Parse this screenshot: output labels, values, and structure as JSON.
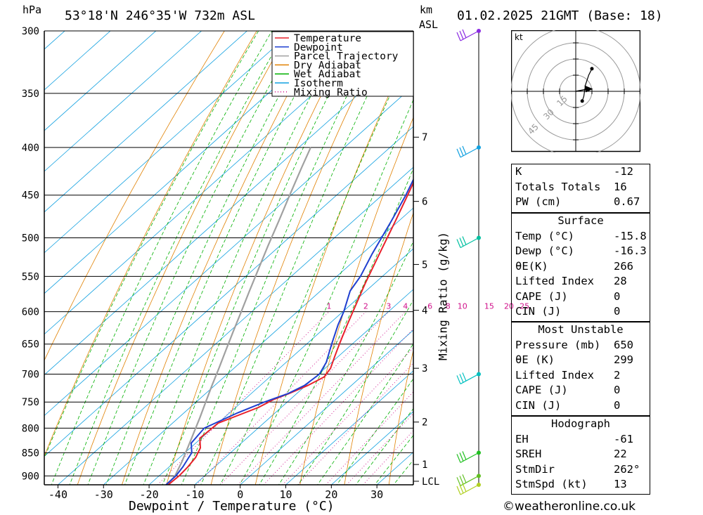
{
  "header": {
    "location": "53°18'N  246°35'W  732m  ASL",
    "datetime": "01.02.2025  21GMT  (Base: 18)",
    "pressure_unit": "hPa",
    "height_unit": "km",
    "height_ref": "ASL"
  },
  "chart_data": {
    "type": "line",
    "xlabel": "Dewpoint / Temperature (°C)",
    "ylabel": "hPa",
    "secondary_ylabel": "Mixing Ratio (g/kg)",
    "xlim": [
      -43,
      38
    ],
    "ylim": [
      920,
      300
    ],
    "y_scale": "log",
    "skew_deg_per_log": 99.5,
    "x_ticks": [
      -40,
      -30,
      -20,
      -10,
      0,
      10,
      20,
      30
    ],
    "x_tick_labels": [
      "-40",
      "-30",
      "-20",
      "-10",
      "0",
      "10",
      "20",
      "30"
    ],
    "pressure_levels": [
      300,
      350,
      400,
      450,
      500,
      550,
      600,
      650,
      700,
      750,
      800,
      850,
      900
    ],
    "height_km_ticks": [
      {
        "label": "7",
        "p": 390
      },
      {
        "label": "6",
        "p": 457
      },
      {
        "label": "5",
        "p": 534
      },
      {
        "label": "4",
        "p": 598
      },
      {
        "label": "3",
        "p": 690
      },
      {
        "label": "2",
        "p": 788
      },
      {
        "label": "1",
        "p": 875
      },
      {
        "label": "LCL",
        "p": 912
      }
    ],
    "mixing_ratio_labels": [
      "1",
      "2",
      "3",
      "4",
      "6",
      "8",
      "10",
      "15",
      "20",
      "25"
    ],
    "mixing_ratio_values": [
      1,
      2,
      3,
      4,
      6,
      8,
      10,
      15,
      20,
      25
    ],
    "legend": [
      "Temperature",
      "Dewpoint",
      "Parcel Trajectory",
      "Dry Adiabat",
      "Wet Adiabat",
      "Isotherm",
      "Mixing Ratio"
    ],
    "legend_position": "top-right",
    "colors": {
      "temperature": "#e8202a",
      "dewpoint": "#1f3fd0",
      "parcel": "#a0a0a0",
      "dry_adiabat": "#e08000",
      "wet_adiabat": "#00b000",
      "isotherm": "#10a0e0",
      "mixing_ratio": "#d0108a"
    },
    "series": [
      {
        "name": "Temperature",
        "points": [
          [
            920,
            -15.8
          ],
          [
            900,
            -15.6
          ],
          [
            880,
            -15.9
          ],
          [
            860,
            -16.5
          ],
          [
            840,
            -17.8
          ],
          [
            820,
            -20.3
          ],
          [
            790,
            -20.0
          ],
          [
            760,
            -15.0
          ],
          [
            745,
            -13.6
          ],
          [
            735,
            -11.8
          ],
          [
            720,
            -9.6
          ],
          [
            705,
            -8.1
          ],
          [
            690,
            -8.8
          ],
          [
            670,
            -10.8
          ],
          [
            650,
            -12.8
          ],
          [
            620,
            -15.8
          ],
          [
            600,
            -17.8
          ],
          [
            560,
            -22.0
          ],
          [
            520,
            -26.2
          ],
          [
            480,
            -30.7
          ],
          [
            450,
            -34.4
          ],
          [
            420,
            -38.4
          ],
          [
            400,
            -41.2
          ],
          [
            370,
            -45.8
          ],
          [
            350,
            -49.2
          ],
          [
            330,
            -50.6
          ],
          [
            300,
            -53.8
          ]
        ]
      },
      {
        "name": "Dewpoint",
        "points": [
          [
            920,
            -16.3
          ],
          [
            900,
            -16.3
          ],
          [
            880,
            -17.0
          ],
          [
            860,
            -18.0
          ],
          [
            850,
            -18.5
          ],
          [
            830,
            -21.0
          ],
          [
            800,
            -21.8
          ],
          [
            770,
            -18.2
          ],
          [
            750,
            -15.0
          ],
          [
            735,
            -12.0
          ],
          [
            720,
            -10.3
          ],
          [
            700,
            -9.8
          ],
          [
            680,
            -11.2
          ],
          [
            650,
            -14.5
          ],
          [
            620,
            -17.8
          ],
          [
            600,
            -19.8
          ],
          [
            570,
            -23.5
          ],
          [
            550,
            -24.8
          ],
          [
            520,
            -27.8
          ],
          [
            480,
            -31.6
          ],
          [
            450,
            -34.8
          ],
          [
            420,
            -38.7
          ],
          [
            400,
            -41.5
          ],
          [
            370,
            -46.0
          ],
          [
            350,
            -49.4
          ],
          [
            330,
            -51.0
          ],
          [
            300,
            -54.2
          ]
        ]
      },
      {
        "name": "Parcel Trajectory",
        "points": [
          [
            920,
            -16.0
          ],
          [
            900,
            -16.5
          ],
          [
            870,
            -18.4
          ],
          [
            840,
            -20.6
          ],
          [
            810,
            -22.9
          ],
          [
            780,
            -25.3
          ],
          [
            750,
            -27.9
          ],
          [
            720,
            -30.6
          ],
          [
            690,
            -33.3
          ],
          [
            660,
            -36.2
          ],
          [
            630,
            -39.2
          ],
          [
            600,
            -42.3
          ],
          [
            570,
            -45.6
          ],
          [
            540,
            -49.0
          ],
          [
            510,
            -52.6
          ],
          [
            480,
            -56.3
          ],
          [
            450,
            -60.3
          ],
          [
            420,
            -64.5
          ],
          [
            400,
            -67.4
          ]
        ]
      }
    ]
  },
  "hodograph": {
    "unit": "kt",
    "ring_labels": [
      "15",
      "30",
      "45"
    ],
    "hodo_points": [
      [
        4,
        -6
      ],
      [
        5,
        -3
      ],
      [
        6,
        4
      ],
      [
        8,
        10
      ],
      [
        10,
        14
      ]
    ],
    "storm_motion": [
      8,
      1.5
    ]
  },
  "wind_barbs": [
    {
      "p": 300,
      "color": "#8a2be2"
    },
    {
      "p": 400,
      "color": "#10a0e0"
    },
    {
      "p": 500,
      "color": "#00c0a0"
    },
    {
      "p": 700,
      "color": "#00c0c0"
    },
    {
      "p": 850,
      "color": "#20c020"
    },
    {
      "p": 900,
      "color": "#60c020"
    },
    {
      "p": 920,
      "color": "#b0d020"
    }
  ],
  "indices": {
    "rows": [
      {
        "k": "K",
        "v": "-12"
      },
      {
        "k": "Totals Totals",
        "v": "16"
      },
      {
        "k": "PW (cm)",
        "v": "0.67"
      }
    ]
  },
  "surface": {
    "title": "Surface",
    "rows": [
      {
        "k": "Temp (°C)",
        "v": "-15.8"
      },
      {
        "k": "Dewp (°C)",
        "v": "-16.3"
      },
      {
        "k": "θE(K)",
        "v": "266"
      },
      {
        "k": "Lifted Index",
        "v": "28"
      },
      {
        "k": "CAPE (J)",
        "v": "0"
      },
      {
        "k": "CIN (J)",
        "v": "0"
      }
    ]
  },
  "most_unstable": {
    "title": "Most Unstable",
    "rows": [
      {
        "k": "Pressure (mb)",
        "v": "650"
      },
      {
        "k": "θE (K)",
        "v": "299"
      },
      {
        "k": "Lifted Index",
        "v": "2"
      },
      {
        "k": "CAPE (J)",
        "v": "0"
      },
      {
        "k": "CIN (J)",
        "v": "0"
      }
    ]
  },
  "hodograph_table": {
    "title": "Hodograph",
    "rows": [
      {
        "k": "EH",
        "v": "-61"
      },
      {
        "k": "SREH",
        "v": "22"
      },
      {
        "k": "StmDir",
        "v": "262°"
      },
      {
        "k": "StmSpd (kt)",
        "v": "13"
      }
    ]
  },
  "footer": {
    "copyright": "©weatheronline.co.uk"
  }
}
